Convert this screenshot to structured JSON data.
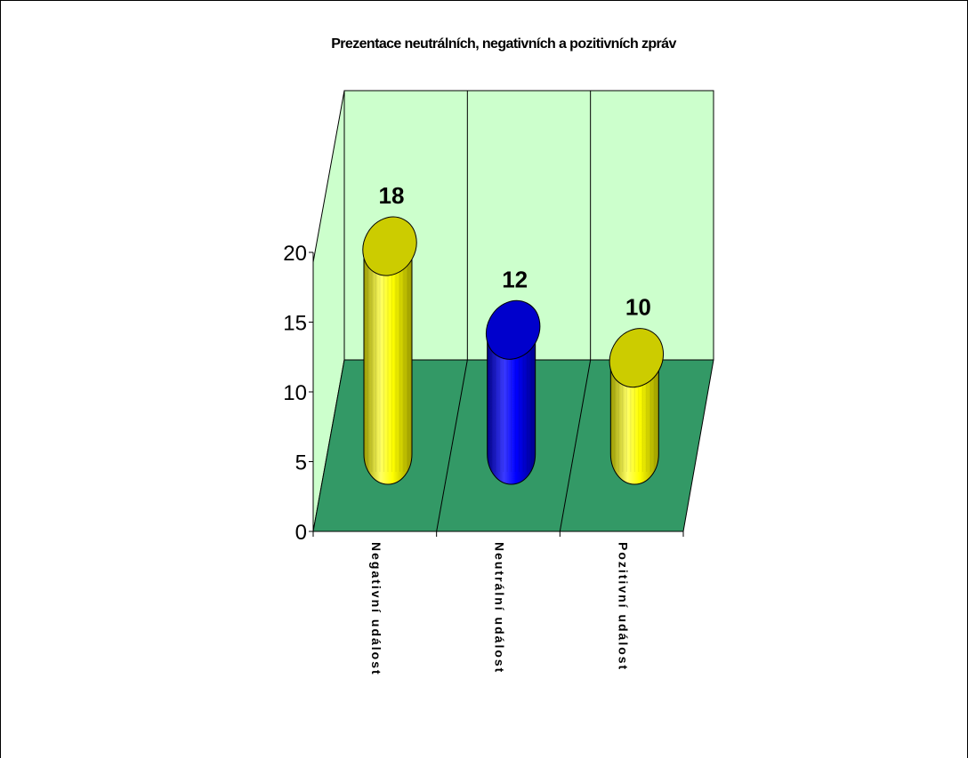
{
  "chart_data": {
    "type": "bar",
    "style": "3d-cylinder",
    "title": "Prezentace neutrálních, negativních a pozitivních zpráv",
    "categories": [
      "Negativní událost",
      "Neutrální událost",
      "Pozitivní událost"
    ],
    "values": [
      18,
      12,
      10
    ],
    "data_labels": [
      "18",
      "12",
      "10"
    ],
    "y_ticks": [
      "0",
      "5",
      "10",
      "15",
      "20"
    ],
    "ylim": [
      0,
      20
    ],
    "xlabel": "",
    "ylabel": "",
    "grid": false,
    "legend": "none",
    "colors": {
      "wall": "#ccffcc",
      "floor": "#339966",
      "bars": [
        "#ffff00",
        "#0000ff",
        "#ffff00"
      ],
      "bar_tops": [
        "#cccc00",
        "#0000cc",
        "#cccc00"
      ]
    }
  }
}
